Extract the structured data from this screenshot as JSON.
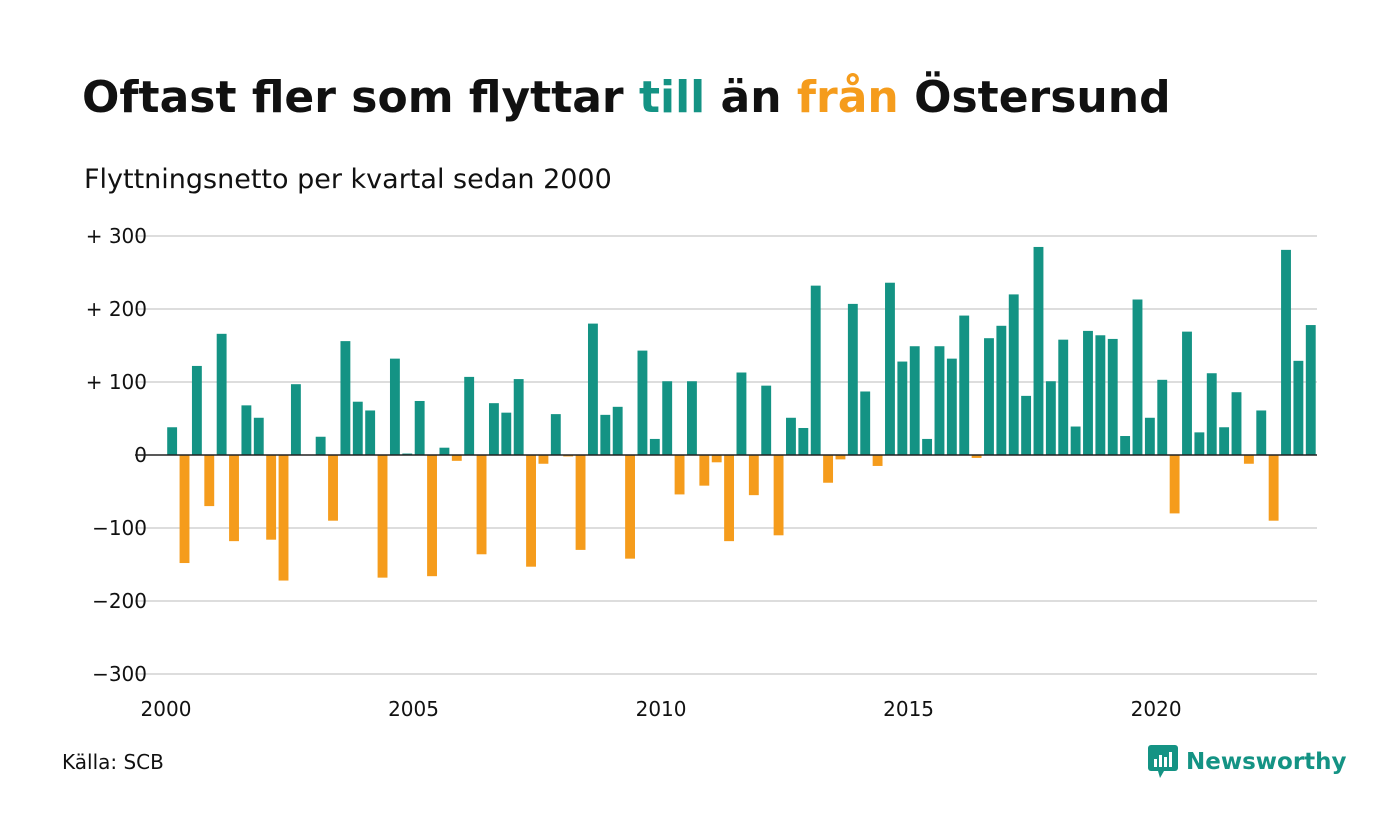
{
  "title": {
    "part1": "Oftast fler som flyttar ",
    "till": "till",
    "part2": " än ",
    "fran": "från",
    "part3": " Östersund"
  },
  "subtitle": "Flyttningsnetto per kvartal sedan 2000",
  "source": "Källa: SCB",
  "brand": {
    "name": "Newsworthy",
    "icon": "newsworthy-logo-icon"
  },
  "colors": {
    "positive": "#149384",
    "negative": "#f59c1c",
    "grid": "#dddddd",
    "zero": "#222222"
  },
  "chart_data": {
    "type": "bar",
    "x_start": 2000,
    "x_step": 0.25,
    "xlim": [
      2000,
      2023.25
    ],
    "ylim": [
      -300,
      300
    ],
    "y_ticks": [
      300,
      200,
      100,
      0,
      -100,
      -200,
      -300
    ],
    "y_tick_labels": [
      "+ 300",
      "+ 200",
      "+ 100",
      "0",
      "−100",
      "−200",
      "−300"
    ],
    "x_ticks": [
      2000,
      2005,
      2010,
      2015,
      2020
    ],
    "x_tick_labels": [
      "2000",
      "2005",
      "2010",
      "2015",
      "2020"
    ],
    "grid": true,
    "values": [
      38,
      -148,
      122,
      -70,
      166,
      -118,
      68,
      51,
      -116,
      -172,
      97,
      0,
      25,
      -90,
      156,
      73,
      61,
      -168,
      132,
      2,
      74,
      -166,
      10,
      -8,
      107,
      -136,
      71,
      58,
      104,
      -153,
      -12,
      56,
      -2,
      -130,
      180,
      55,
      66,
      -142,
      143,
      22,
      101,
      -54,
      101,
      -42,
      -10,
      -118,
      113,
      -55,
      95,
      -110,
      51,
      37,
      232,
      -38,
      -6,
      207,
      87,
      -15,
      236,
      128,
      149,
      22,
      149,
      132,
      191,
      -4,
      160,
      177,
      220,
      81,
      285,
      101,
      158,
      39,
      170,
      164,
      159,
      26,
      213,
      51,
      103,
      -80,
      169,
      31,
      112,
      38,
      86,
      -12,
      61,
      -90,
      281,
      129,
      178
    ]
  }
}
